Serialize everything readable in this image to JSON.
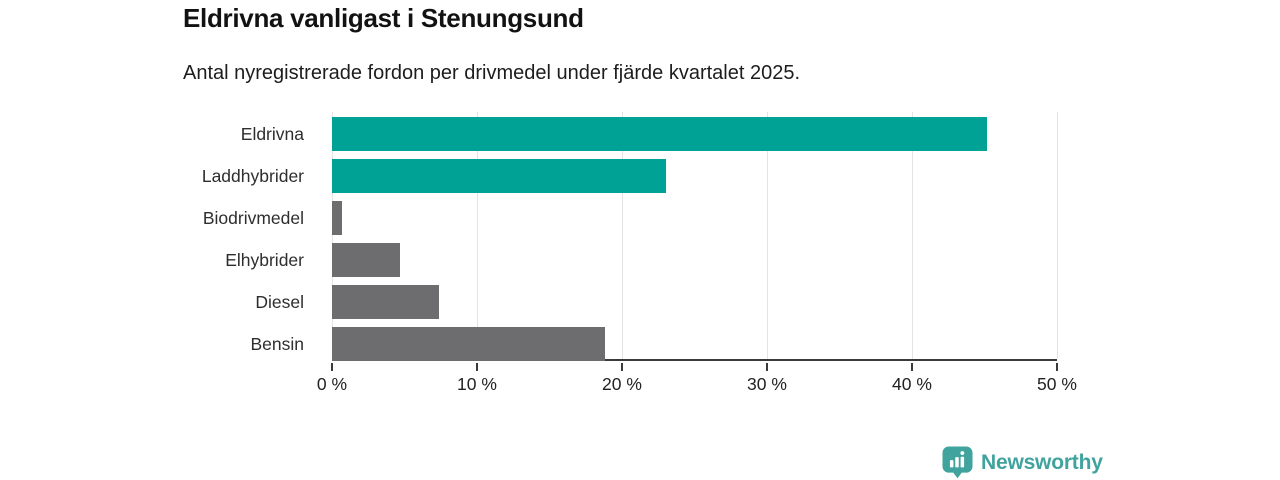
{
  "chart_data": {
    "type": "bar",
    "orientation": "horizontal",
    "title": "Eldrivna vanligast i Stenungsund",
    "subtitle": "Antal nyregistrerade fordon per drivmedel under fjärde kvartalet 2025.",
    "categories": [
      "Eldrivna",
      "Laddhybrider",
      "Biodrivmedel",
      "Elhybrider",
      "Diesel",
      "Bensin"
    ],
    "values": [
      45.2,
      23.0,
      0.7,
      4.7,
      7.4,
      18.8
    ],
    "unit": "%",
    "xlim": [
      0,
      50
    ],
    "x_ticks": [
      0,
      10,
      20,
      30,
      40,
      50
    ],
    "x_tick_labels": [
      "0 %",
      "10 %",
      "20 %",
      "30 %",
      "40 %",
      "50 %"
    ],
    "bar_colors": [
      "#00a296",
      "#00a296",
      "#6d6d70",
      "#6d6d70",
      "#6d6d70",
      "#6d6d70"
    ],
    "highlight_color": "#00a296",
    "default_color": "#6d6d70",
    "grid": true,
    "gridline_color": "#e3e3e3",
    "axis_color": "#3a3a3a",
    "legend": "none"
  },
  "branding": {
    "logo_text": "Newsworthy",
    "logo_color": "#41a39d",
    "logo_icon": "bar-chart-speech-bubble-icon"
  }
}
